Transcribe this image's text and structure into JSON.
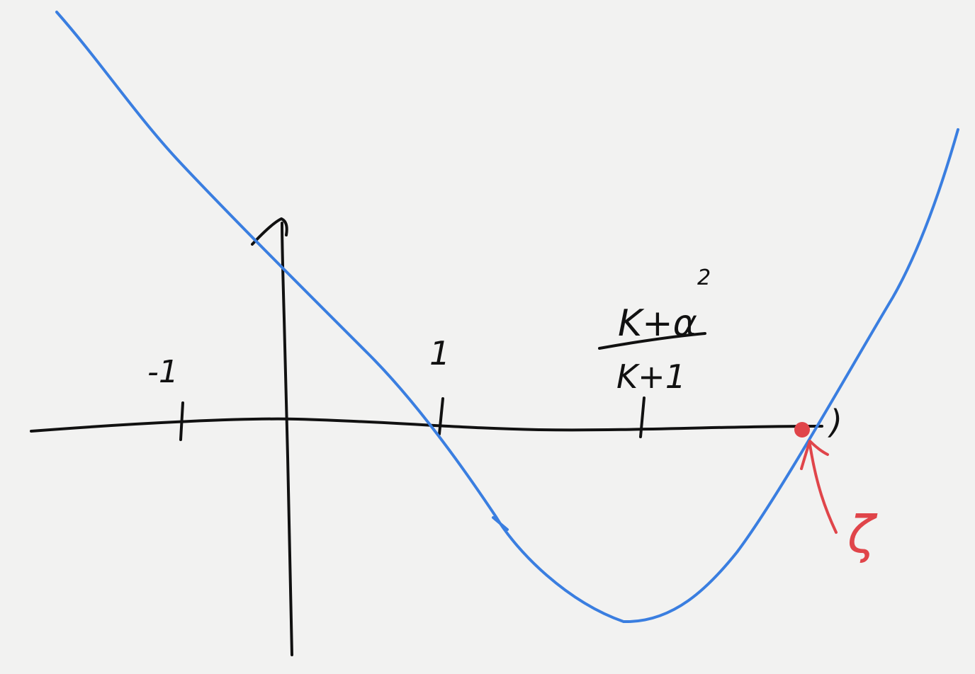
{
  "diagram": {
    "tick_labels": {
      "minus_one": "-1",
      "one": "1",
      "fraction_numerator_base": "K+α",
      "fraction_numerator_exponent": "2",
      "fraction_denominator": "K+1"
    },
    "root_label": "ζ",
    "open_paren": ")",
    "colors": {
      "background": "#f2f2f1",
      "axes": "#111111",
      "curve": "#3a7ee0",
      "highlight": "#e0454a"
    }
  }
}
